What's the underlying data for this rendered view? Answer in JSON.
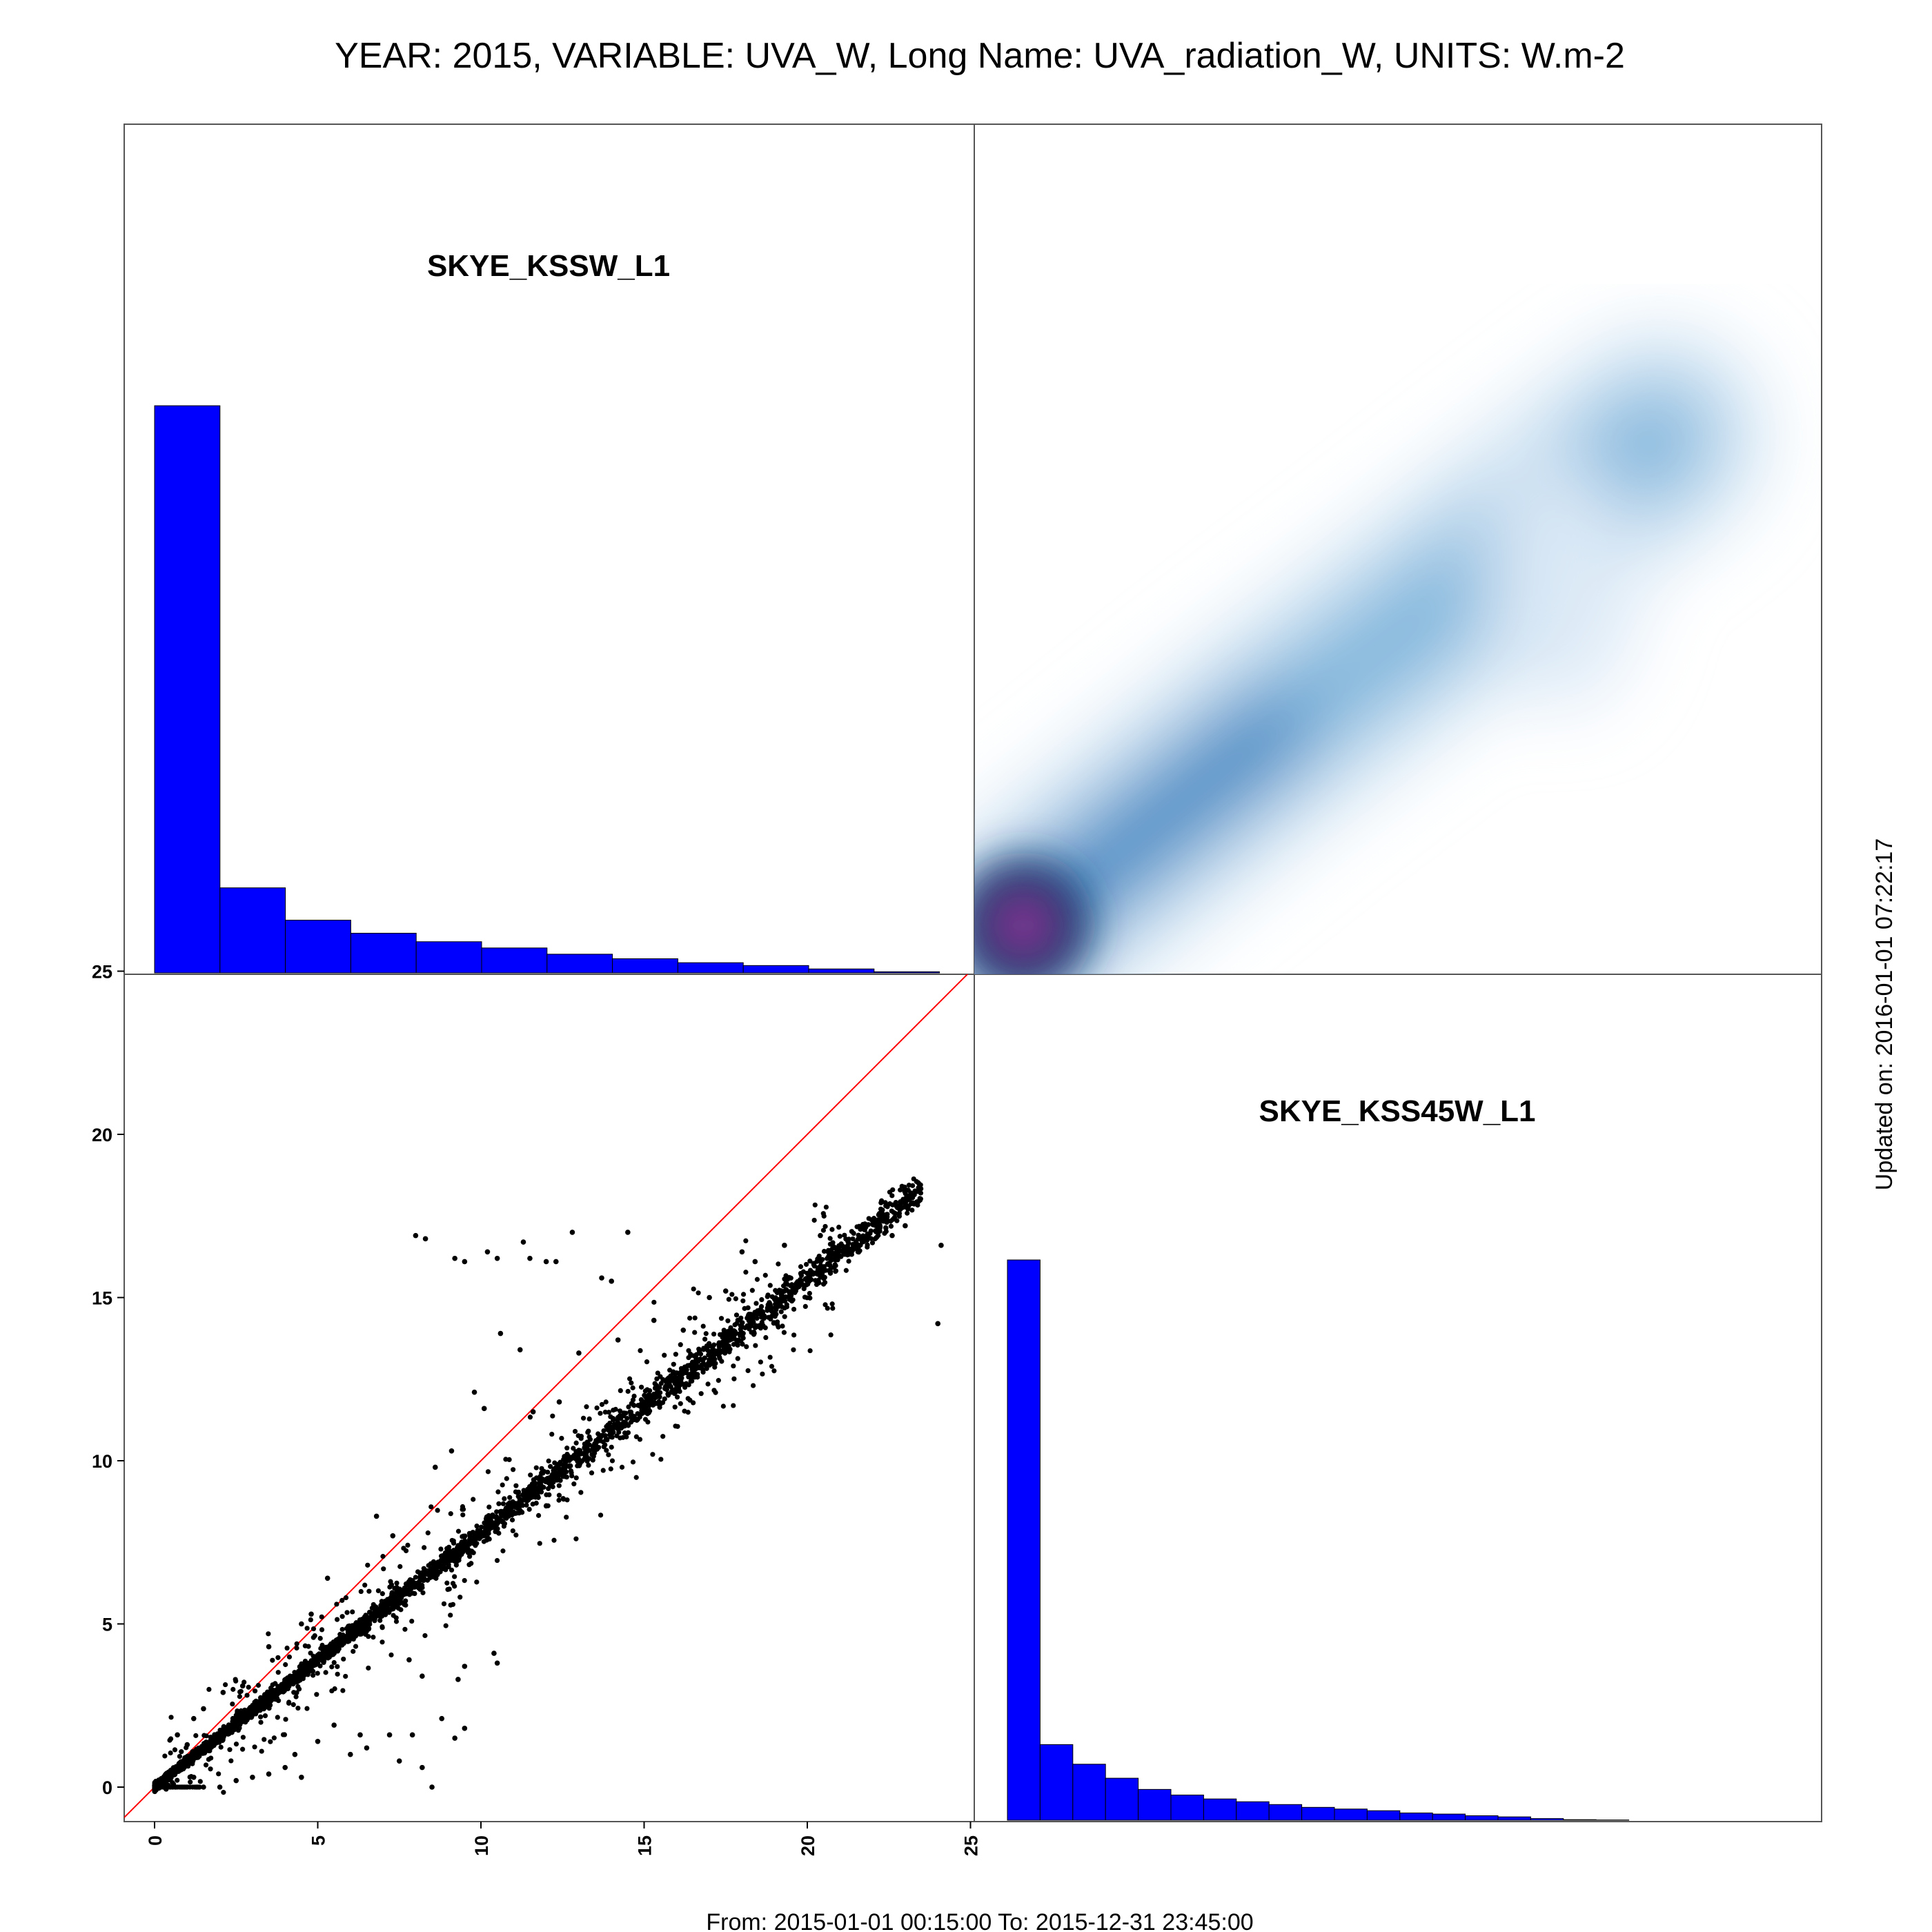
{
  "title": "YEAR: 2015, VARIABLE: UVA_W, Long Name: UVA_radiation_W, UNITS: W.m-2",
  "footer": "From: 2015-01-01 00:15:00 To: 2015-12-31 23:45:00",
  "updated": "Updated on: 2016-01-01 07:22:17",
  "colors": {
    "hist": "#0000ff",
    "points": "#000000",
    "identity": "#ff0000",
    "frame": "#555555"
  },
  "chart_data": [
    {
      "type": "bar",
      "name": "hist-top",
      "label": "SKYE_KSSW_L1",
      "bin_edges": [
        0,
        2,
        4,
        6,
        8,
        10,
        12,
        14,
        16,
        18,
        20,
        22,
        24
      ],
      "values": [
        100,
        15,
        9.3,
        7,
        5.5,
        4.4,
        3.3,
        2.5,
        1.8,
        1.3,
        0.7,
        0.2
      ]
    },
    {
      "type": "heatmap",
      "name": "density",
      "x_range": [
        -1,
        25
      ],
      "y_range": [
        -1,
        25
      ],
      "ridge": [
        [
          0,
          0
        ],
        [
          4,
          3.2
        ],
        [
          8,
          6.4
        ],
        [
          12,
          9.4
        ],
        [
          16,
          12.5
        ],
        [
          20,
          15.5
        ]
      ],
      "peak": [
        0.5,
        0.5
      ]
    },
    {
      "type": "scatter",
      "name": "scatter",
      "x_range": [
        -1,
        25
      ],
      "y_range": [
        -1,
        25
      ],
      "x_ticks": [
        "0",
        "5",
        "10",
        "15",
        "20",
        "25"
      ],
      "y_ticks": [
        "0",
        "5",
        "10",
        "15",
        "20",
        "25"
      ],
      "trend_slope": 0.78,
      "reference_line": "y = x",
      "outliers": [
        [
          8,
          16.9
        ],
        [
          8.3,
          16.8
        ],
        [
          9.2,
          16.2
        ],
        [
          9.5,
          16.1
        ],
        [
          10.2,
          16.4
        ],
        [
          10.5,
          16.2
        ],
        [
          11.3,
          16.7
        ],
        [
          11.5,
          16.2
        ],
        [
          12.0,
          16.1
        ],
        [
          12.3,
          16.1
        ],
        [
          12.8,
          17.0
        ],
        [
          14.5,
          17.0
        ],
        [
          13.7,
          15.6
        ],
        [
          14.0,
          15.5
        ],
        [
          10.6,
          13.9
        ],
        [
          11.2,
          13.4
        ],
        [
          9.8,
          12.1
        ],
        [
          10.1,
          11.6
        ],
        [
          9.1,
          10.3
        ],
        [
          8.6,
          9.8
        ],
        [
          12.4,
          11.8
        ],
        [
          11.6,
          11.5
        ],
        [
          13.0,
          13.3
        ],
        [
          14.2,
          13.7
        ],
        [
          15.3,
          14.3
        ],
        [
          16.2,
          14.0
        ],
        [
          17.0,
          15.0
        ],
        [
          16.8,
          13.1
        ],
        [
          17.5,
          15.2
        ],
        [
          18.0,
          16.4
        ],
        [
          18.4,
          16.1
        ],
        [
          19.3,
          16.6
        ],
        [
          20.4,
          16.9
        ],
        [
          21.5,
          16.5
        ],
        [
          22.6,
          16.9
        ],
        [
          23.0,
          17.2
        ],
        [
          24.1,
          16.6
        ],
        [
          24.0,
          14.2
        ],
        [
          6.8,
          8.3
        ],
        [
          7.3,
          7.7
        ],
        [
          5.3,
          6.4
        ],
        [
          4.8,
          5.3
        ],
        [
          4.5,
          5.0
        ],
        [
          3.5,
          4.3
        ],
        [
          2.7,
          3.1
        ],
        [
          2.1,
          2.9
        ],
        [
          1.5,
          2.4
        ],
        [
          1.2,
          2.1
        ],
        [
          0.7,
          1.6
        ],
        [
          1.0,
          1.3
        ],
        [
          9.5,
          3.7
        ],
        [
          10.4,
          4.1
        ],
        [
          10.5,
          3.8
        ],
        [
          8.8,
          2.1
        ],
        [
          9.3,
          3.3
        ],
        [
          7.8,
          3.9
        ],
        [
          8.2,
          3.4
        ],
        [
          9.5,
          1.8
        ],
        [
          9.2,
          1.5
        ],
        [
          7.9,
          1.6
        ],
        [
          7.2,
          1.6
        ],
        [
          6.3,
          1.6
        ],
        [
          5.5,
          1.9
        ],
        [
          5.0,
          1.4
        ],
        [
          4.3,
          1.0
        ],
        [
          3.5,
          0.4
        ],
        [
          3.0,
          0.3
        ],
        [
          4.0,
          0.6
        ],
        [
          4.5,
          0.3
        ],
        [
          6.0,
          1.0
        ],
        [
          6.5,
          1.2
        ],
        [
          7.5,
          0.8
        ],
        [
          8.2,
          0.6
        ],
        [
          8.5,
          0.0
        ],
        [
          2.5,
          0.2
        ],
        [
          2.0,
          0.0
        ],
        [
          1.5,
          0.0
        ],
        [
          1.2,
          0.3
        ]
      ]
    },
    {
      "type": "bar",
      "name": "hist-bottom",
      "label": "SKYE_KSS45W_L1",
      "bin_edges": [
        0,
        1,
        2,
        3,
        4,
        5,
        6,
        7,
        8,
        9,
        10,
        11,
        12,
        13,
        14,
        15,
        16,
        17,
        18,
        19
      ],
      "values": [
        100,
        13.5,
        10,
        7.5,
        5.5,
        4.5,
        3.8,
        3.3,
        2.8,
        2.3,
        2.0,
        1.7,
        1.3,
        1.1,
        0.8,
        0.6,
        0.3,
        0.1,
        0.05
      ]
    }
  ]
}
